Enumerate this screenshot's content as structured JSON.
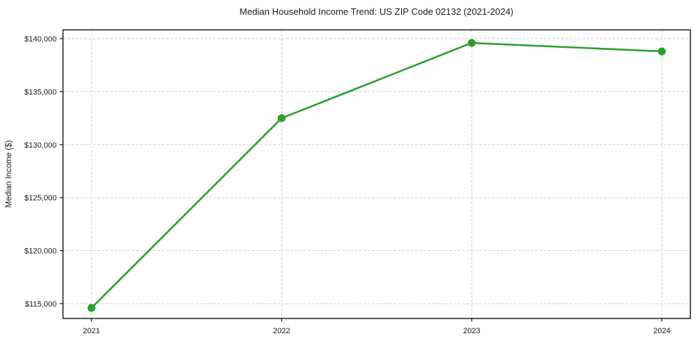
{
  "page": {
    "background": "#ffffff"
  },
  "chart_data": {
    "type": "line",
    "title": "Median Household Income Trend: US ZIP Code 02132 (2021-2024)",
    "xlabel": "",
    "ylabel": "Median Income ($)",
    "x": [
      2021,
      2022,
      2023,
      2024
    ],
    "xtick_labels": [
      "2021",
      "2022",
      "2023",
      "2024"
    ],
    "series": [
      {
        "name": "Median household income",
        "values": [
          114600,
          132500,
          139600,
          138800
        ],
        "color": "#2ca02c",
        "marker": "circle",
        "marker_radius": 5.6,
        "line_width": 2.6
      }
    ],
    "yticks": [
      115000,
      120000,
      125000,
      130000,
      135000,
      140000
    ],
    "ytick_labels": [
      "$115,000",
      "$120,000",
      "$125,000",
      "$130,000",
      "$135,000",
      "$140,000"
    ],
    "xlim": [
      2020.85,
      2024.15
    ],
    "ylim": [
      113600,
      140830
    ],
    "grid": true,
    "grid_color": "#c9c9c9",
    "legend_position": "none",
    "text_color": "#1a1a1a",
    "spine_color": "#000000"
  }
}
